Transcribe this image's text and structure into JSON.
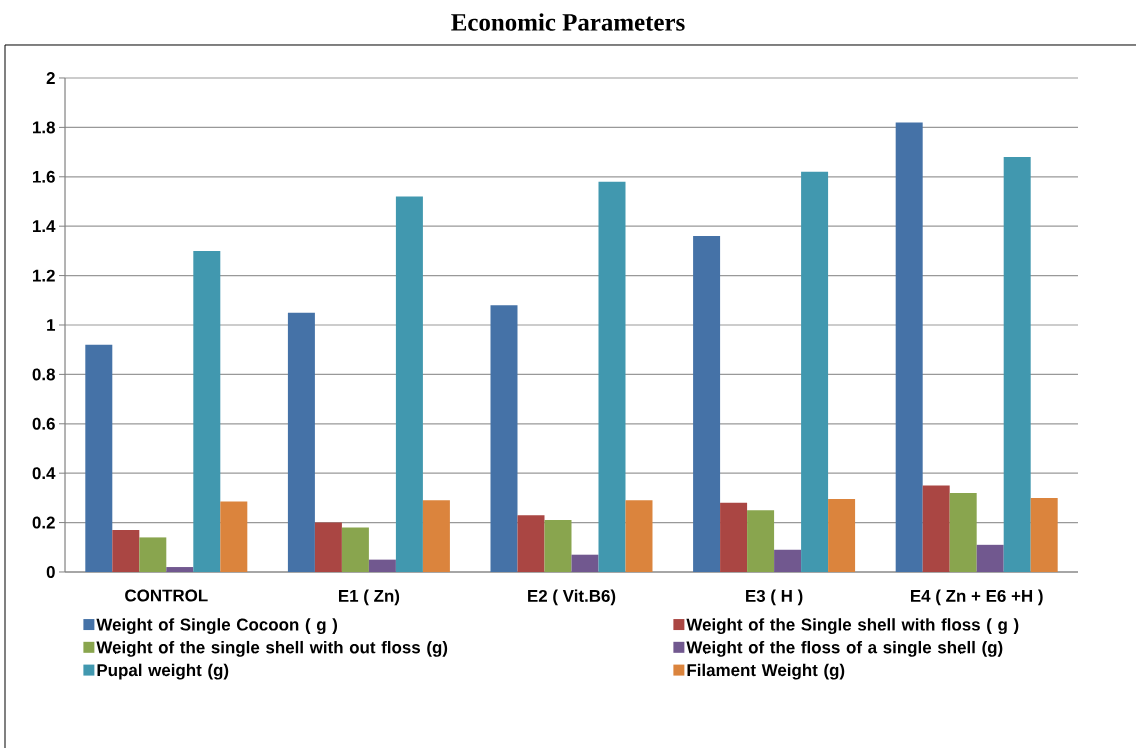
{
  "chart_data": {
    "type": "bar",
    "title": "Economic Parameters",
    "categories": [
      "CONTROL",
      "E1 ( Zn)",
      "E2 ( Vit.B6)",
      "E3 ( H )",
      "E4 ( Zn + E6 +H )"
    ],
    "series": [
      {
        "name": "Weight of Single Cocoon ( g )",
        "color": "#4572a7",
        "values": [
          0.92,
          1.05,
          1.08,
          1.36,
          1.82
        ]
      },
      {
        "name": "Weight of the Single shell with  floss ( g )",
        "color": "#aa4643",
        "values": [
          0.17,
          0.2,
          0.23,
          0.28,
          0.35
        ]
      },
      {
        "name": "Weight of the single shell with out floss (g)",
        "color": "#89a54e",
        "values": [
          0.14,
          0.18,
          0.21,
          0.25,
          0.32
        ]
      },
      {
        "name": "Weight of the floss of a single shell (g)",
        "color": "#71588f",
        "values": [
          0.02,
          0.05,
          0.07,
          0.09,
          0.11
        ]
      },
      {
        "name": "Pupal  weight (g)",
        "color": "#4198af",
        "values": [
          1.3,
          1.52,
          1.58,
          1.62,
          1.68
        ]
      },
      {
        "name": "Filament Weight (g)",
        "color": "#db843d",
        "values": [
          0.285,
          0.29,
          0.29,
          0.295,
          0.3
        ]
      }
    ],
    "ylim": [
      0,
      2
    ],
    "yticks": [
      0,
      0.2,
      0.4,
      0.6,
      0.8,
      1,
      1.2,
      1.4,
      1.6,
      1.8,
      2
    ],
    "grid": "y",
    "legend": "bottom"
  }
}
